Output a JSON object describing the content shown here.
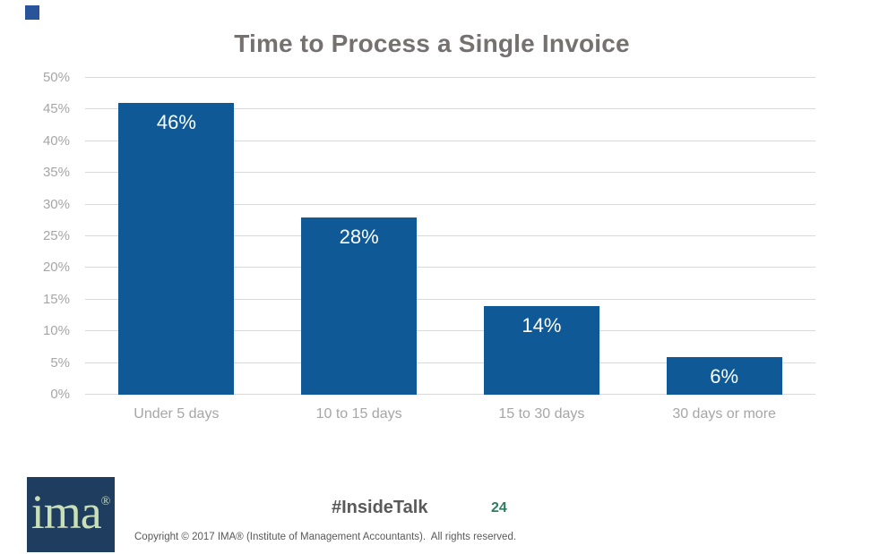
{
  "page": {
    "title": "Time to Process a Single Invoice"
  },
  "chart_data": {
    "type": "bar",
    "title": "Time to Process a Single Invoice",
    "categories": [
      "Under 5 days",
      "10 to 15 days",
      "15 to 30 days",
      "30 days or more"
    ],
    "values": [
      46,
      28,
      14,
      6
    ],
    "value_labels": [
      "46%",
      "28%",
      "14%",
      "6%"
    ],
    "xlabel": "",
    "ylabel": "",
    "ylim": [
      0,
      50
    ],
    "ytick_step": 5,
    "ytick_labels": [
      "0%",
      "5%",
      "10%",
      "15%",
      "20%",
      "25%",
      "30%",
      "35%",
      "40%",
      "45%",
      "50%"
    ],
    "grid": true,
    "legend": "none",
    "bar_color": "#0f5a96",
    "value_label_color": "#ffffff",
    "axis_label_color": "#a6a6a6",
    "gridline_color": "#d9d9d9",
    "title_color": "#767171"
  },
  "footer": {
    "logo_text": "ima",
    "logo_reg": "®",
    "hashtag": "#InsideTalk",
    "page_number": "24",
    "copyright": "Copyright © 2017 IMA® (Institute of Management Accountants).  All rights reserved."
  },
  "decor": {
    "corner_accent_color": "#2a5499"
  }
}
